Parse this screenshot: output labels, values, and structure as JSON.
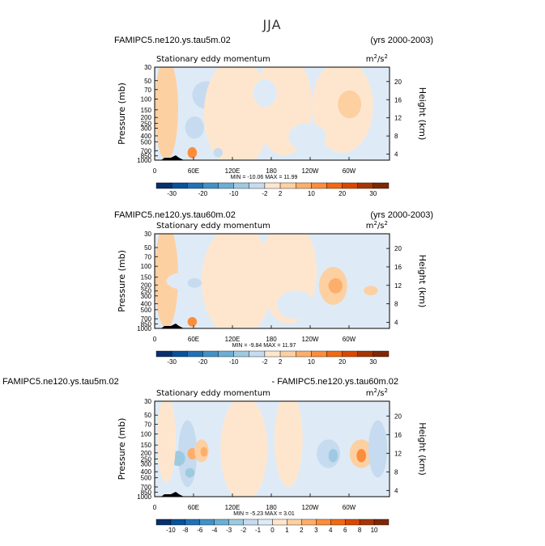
{
  "figure": {
    "title": "JJA"
  },
  "chart_data": [
    {
      "type": "heatmap",
      "case": "FAMIPC5.ne120.ys.tau5m.02",
      "case_right": "(yrs 2000-2003)",
      "variable": "Stationary eddy momentum",
      "units": "m²/s²",
      "units_base": "m",
      "units_exp1": "2",
      "units_mid": "/s",
      "units_exp2": "2",
      "ylabel": "Pressure (mb)",
      "ylabel_right": "Height (km)",
      "xticks": [
        "0",
        "60E",
        "120E",
        "180",
        "120W",
        "60W"
      ],
      "yticks": [
        "30",
        "50",
        "70",
        "100",
        "150",
        "200",
        "250",
        "300",
        "400",
        "500",
        "700",
        "850",
        "1000"
      ],
      "ticks_right": [
        "20",
        "16",
        "12",
        "8",
        "4"
      ],
      "stats": "MIN = -10.06   MAX =  11.99",
      "min": -10.06,
      "max": 11.99,
      "colorbar": {
        "labels": [
          "-30",
          "-20",
          "-10",
          "-2",
          "2",
          "10",
          "20",
          "30"
        ],
        "levels": [
          -35,
          -30,
          -25,
          -20,
          -15,
          -10,
          -5,
          -2,
          2,
          5,
          10,
          15,
          20,
          25,
          30,
          35
        ]
      }
    },
    {
      "type": "heatmap",
      "case": "FAMIPC5.ne120.ys.tau60m.02",
      "case_right": "(yrs 2000-2003)",
      "variable": "Stationary eddy momentum",
      "units": "m²/s²",
      "units_base": "m",
      "units_exp1": "2",
      "units_mid": "/s",
      "units_exp2": "2",
      "ylabel": "Pressure (mb)",
      "ylabel_right": "Height (km)",
      "xticks": [
        "0",
        "60E",
        "120E",
        "180",
        "120W",
        "60W"
      ],
      "yticks": [
        "30",
        "50",
        "70",
        "100",
        "150",
        "200",
        "250",
        "300",
        "400",
        "500",
        "700",
        "850",
        "1000"
      ],
      "ticks_right": [
        "20",
        "16",
        "12",
        "8",
        "4"
      ],
      "stats": "MIN = -9.84   MAX =  11.97",
      "min": -9.84,
      "max": 11.97,
      "colorbar": {
        "labels": [
          "-30",
          "-20",
          "-10",
          "-2",
          "2",
          "10",
          "20",
          "30"
        ],
        "levels": [
          -35,
          -30,
          -25,
          -20,
          -15,
          -10,
          -5,
          -2,
          2,
          5,
          10,
          15,
          20,
          25,
          30,
          35
        ]
      }
    },
    {
      "type": "heatmap",
      "case": "FAMIPC5.ne120.ys.tau5m.02",
      "case_right": "- FAMIPC5.ne120.ys.tau60m.02",
      "variable": "Stationary eddy momentum",
      "units": "m²/s²",
      "units_base": "m",
      "units_exp1": "2",
      "units_mid": "/s",
      "units_exp2": "2",
      "ylabel": "Pressure (mb)",
      "ylabel_right": "Height (km)",
      "xticks": [
        "0",
        "60E",
        "120E",
        "180",
        "120W",
        "60W"
      ],
      "yticks": [
        "30",
        "50",
        "70",
        "100",
        "150",
        "200",
        "250",
        "300",
        "400",
        "500",
        "700",
        "850",
        "1000"
      ],
      "ticks_right": [
        "20",
        "16",
        "12",
        "8",
        "4"
      ],
      "stats": "MIN = -5.23   MAX =  3.01",
      "min": -5.23,
      "max": 3.01,
      "colorbar": {
        "labels": [
          "-10",
          "-8",
          "-6",
          "-4",
          "-3",
          "-2",
          "-1",
          "0",
          "1",
          "2",
          "3",
          "4",
          "6",
          "8",
          "10"
        ],
        "levels": [
          -12,
          -10,
          -8,
          -6,
          -4,
          -3,
          -2,
          -1,
          0,
          1,
          2,
          3,
          4,
          6,
          8,
          10,
          12
        ]
      }
    }
  ],
  "colors": {
    "scale": [
      "#08306b",
      "#08519c",
      "#2171b5",
      "#4292c6",
      "#6baed6",
      "#9ecae1",
      "#c6dbef",
      "#deebf7",
      "#fee6ce",
      "#fdd0a2",
      "#fdae6b",
      "#fd8d3c",
      "#f16913",
      "#d94801",
      "#a63603",
      "#7f2704"
    ]
  }
}
